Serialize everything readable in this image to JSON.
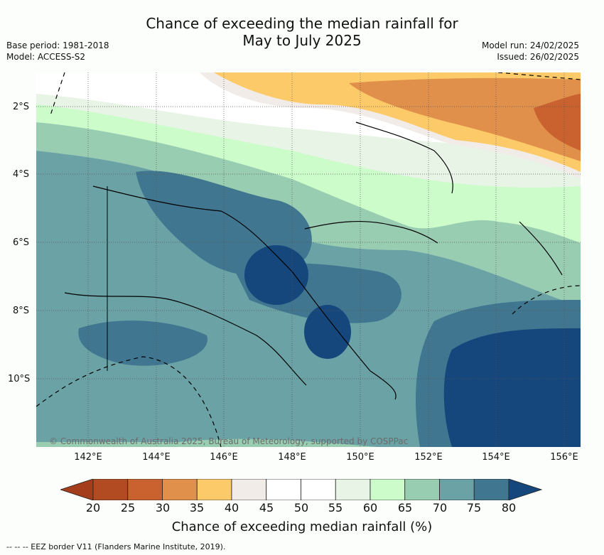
{
  "header": {
    "title_line1": "Chance of exceeding the median rainfall for",
    "title_line2": "May to July 2025",
    "base_period": "Base period: 1981-2018",
    "model": "Model: ACCESS-S2",
    "model_run": "Model run: 24/02/2025",
    "issued": "Issued: 26/02/2025"
  },
  "map": {
    "lat_labels": [
      "2°S",
      "4°S",
      "6°S",
      "8°S",
      "10°S"
    ],
    "lon_labels": [
      "142°E",
      "144°E",
      "146°E",
      "148°E",
      "150°E",
      "152°E",
      "154°E",
      "156°E"
    ],
    "copyright": "© Commonwealth of Australia 2025, Bureau of Meteorology, supported by COSPPac"
  },
  "colorbar": {
    "ticks": [
      "20",
      "25",
      "30",
      "35",
      "40",
      "45",
      "50",
      "55",
      "60",
      "65",
      "70",
      "75",
      "80"
    ],
    "colors": [
      "#a33d1c",
      "#b34b22",
      "#c9622f",
      "#e0904a",
      "#fdca69",
      "#f2ece8",
      "#ffffff",
      "#ffffff",
      "#e8f4e6",
      "#ccfcca",
      "#99cdb2",
      "#6ba2a6",
      "#40768f",
      "#15477d"
    ],
    "label": "Chance of exceeding median rainfall (%)"
  },
  "footer": {
    "eez_note": "--  --  -- EEZ border V11 (Flanders Marine Institute, 2019)."
  }
}
